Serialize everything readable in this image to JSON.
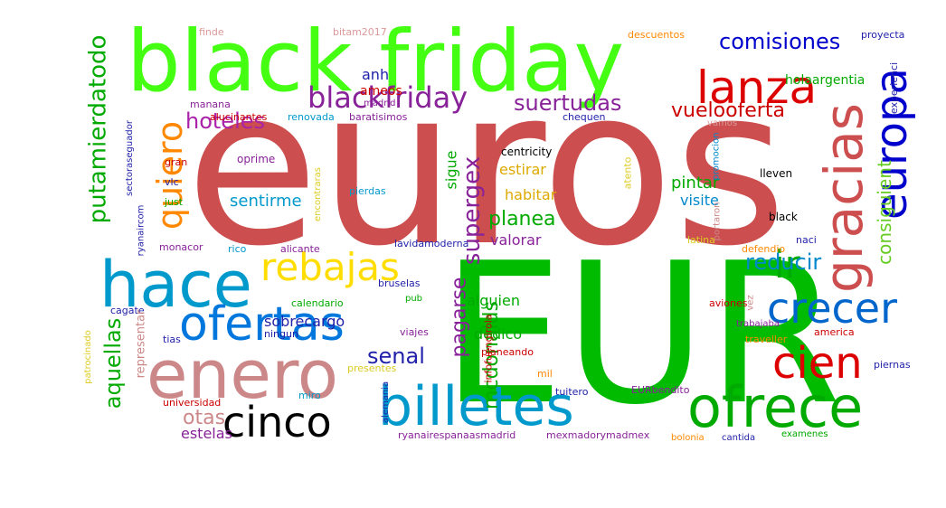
{
  "words": [
    {
      "text": "euros",
      "color": "#cc4e4e"
    },
    {
      "text": "EUR",
      "color": "#00bb00"
    },
    {
      "text": "black friday",
      "color": "#44ff11"
    },
    {
      "text": "enero",
      "color": "#cc8888"
    },
    {
      "text": "hace",
      "color": "#0099cc"
    },
    {
      "text": "ofertas",
      "color": "#0077dd"
    },
    {
      "text": "billetes",
      "color": "#0099cc"
    },
    {
      "text": "ofrece",
      "color": "#00aa00"
    },
    {
      "text": "cinco",
      "color": "#000000"
    },
    {
      "text": "gracias",
      "color": "#cc4e4e"
    },
    {
      "text": "lanza",
      "color": "#dd0000"
    },
    {
      "text": "europa",
      "color": "#0000cc"
    },
    {
      "text": "crecer",
      "color": "#0066cc"
    },
    {
      "text": "cien",
      "color": "#dd0000"
    },
    {
      "text": "ir",
      "color": "#00aa00"
    },
    {
      "text": "rebajas",
      "color": "#ffdd00"
    },
    {
      "text": "quiero",
      "color": "#ff8800"
    },
    {
      "text": "blackfriday",
      "color": "#882299"
    },
    {
      "text": "comisiones",
      "color": "#0000cc"
    },
    {
      "text": "putamierdatodo",
      "color": "#00aa00"
    },
    {
      "text": "hoteles",
      "color": "#aa22aa"
    },
    {
      "text": "suertudas",
      "color": "#882299"
    },
    {
      "text": "vuelooferta",
      "color": "#cc0000"
    },
    {
      "text": "supergex",
      "color": "#882299"
    },
    {
      "text": "planea",
      "color": "#00aa00"
    },
    {
      "text": "consiguient",
      "color": "#66cc22"
    },
    {
      "text": "reducir",
      "color": "#0088cc"
    },
    {
      "text": "aquellas",
      "color": "#00aa00"
    },
    {
      "text": "senal",
      "color": "#2222aa"
    },
    {
      "text": "pagarse",
      "color": "#882299"
    },
    {
      "text": "mcdonalds",
      "color": "#00aa00"
    },
    {
      "text": "otas",
      "color": "#cc8888"
    },
    {
      "text": "anh",
      "color": "#2222aa"
    },
    {
      "text": "ameos",
      "color": "#cc0000"
    },
    {
      "text": "holaargentia",
      "color": "#00aa00"
    },
    {
      "text": "sentirme",
      "color": "#0099cc"
    },
    {
      "text": "estirar",
      "color": "#ddaa00"
    },
    {
      "text": "habitar",
      "color": "#ddaa00"
    },
    {
      "text": "pintar",
      "color": "#00aa00"
    },
    {
      "text": "visite",
      "color": "#0088cc"
    },
    {
      "text": "sigue",
      "color": "#00aa00"
    },
    {
      "text": "valorar",
      "color": "#882299"
    },
    {
      "text": "sobrecargo",
      "color": "#2222aa"
    },
    {
      "text": "alguien",
      "color": "#00aa00"
    },
    {
      "text": "dedico",
      "color": "#00aa00"
    },
    {
      "text": "estelas",
      "color": "#882299"
    },
    {
      "text": "centricity",
      "color": "#000000"
    },
    {
      "text": "lleven",
      "color": "#000000"
    },
    {
      "text": "black",
      "color": "#000000"
    },
    {
      "text": "finde",
      "color": "#dd9999"
    },
    {
      "text": "bitam2017",
      "color": "#dd9999"
    },
    {
      "text": "descuentos",
      "color": "#ff8800"
    },
    {
      "text": "proyecta",
      "color": "#2222aa"
    },
    {
      "text": "experienci",
      "color": "#2222aa"
    },
    {
      "text": "madrid",
      "color": "#882299"
    },
    {
      "text": "manana",
      "color": "#882299"
    },
    {
      "text": "alucinantes",
      "color": "#cc0000"
    },
    {
      "text": "renovada",
      "color": "#0099cc"
    },
    {
      "text": "baratisimos",
      "color": "#882299"
    },
    {
      "text": "chequen",
      "color": "#2222aa"
    },
    {
      "text": "vamos",
      "color": "#dd9999"
    },
    {
      "text": "gran",
      "color": "#cc0000"
    },
    {
      "text": "oprime",
      "color": "#882299"
    },
    {
      "text": "promocion",
      "color": "#0088cc"
    },
    {
      "text": "encontraras",
      "color": "#ddcc22"
    },
    {
      "text": "atento",
      "color": "#ddcc22"
    },
    {
      "text": "vlc",
      "color": "#2222aa"
    },
    {
      "text": "just",
      "color": "#00aa00"
    },
    {
      "text": "pierdas",
      "color": "#0099cc"
    },
    {
      "text": "sectoraseguador",
      "color": "#2222aa"
    },
    {
      "text": "ryanaircom",
      "color": "#2222aa"
    },
    {
      "text": "portaron",
      "color": "#cc8888"
    },
    {
      "text": "monacor",
      "color": "#882299"
    },
    {
      "text": "rico",
      "color": "#0099cc"
    },
    {
      "text": "alicante",
      "color": "#882299"
    },
    {
      "text": "lavidamoderna",
      "color": "#2222aa"
    },
    {
      "text": "latina",
      "color": "#ddcc22"
    },
    {
      "text": "defendio",
      "color": "#ff8800"
    },
    {
      "text": "naci",
      "color": "#2222aa"
    },
    {
      "text": "cagate",
      "color": "#2222aa"
    },
    {
      "text": "calendario",
      "color": "#00aa00"
    },
    {
      "text": "pub",
      "color": "#00aa00"
    },
    {
      "text": "bruselas",
      "color": "#2222aa"
    },
    {
      "text": "ningun",
      "color": "#2222aa"
    },
    {
      "text": "aviones",
      "color": "#cc0000"
    },
    {
      "text": "vez",
      "color": "#cc8888"
    },
    {
      "text": "patrocinado",
      "color": "#ddcc22"
    },
    {
      "text": "representar",
      "color": "#cc8888"
    },
    {
      "text": "tias",
      "color": "#2222aa"
    },
    {
      "text": "viajes",
      "color": "#882299"
    },
    {
      "text": "planeando",
      "color": "#cc0000"
    },
    {
      "text": "trabajaba",
      "color": "#882299"
    },
    {
      "text": "traveller",
      "color": "#ff8800"
    },
    {
      "text": "america",
      "color": "#cc0000"
    },
    {
      "text": "presentes",
      "color": "#ddcc22"
    },
    {
      "text": "mil",
      "color": "#ff8800"
    },
    {
      "text": "piernas",
      "color": "#2222aa"
    },
    {
      "text": "infofuengirola",
      "color": "#cc0000"
    },
    {
      "text": "universidad",
      "color": "#cc0000"
    },
    {
      "text": "miro",
      "color": "#0099cc"
    },
    {
      "text": "tuitero",
      "color": "#2222aa"
    },
    {
      "text": "EURbendito",
      "color": "#882299"
    },
    {
      "text": "alemania",
      "color": "#2222aa"
    },
    {
      "text": "ryanairespanaasmadrid",
      "color": "#882299"
    },
    {
      "text": "mexmadorymadmex",
      "color": "#882299"
    },
    {
      "text": "bolonia",
      "color": "#ff8800"
    },
    {
      "text": "cantida",
      "color": "#2222aa"
    },
    {
      "text": "examenes",
      "color": "#00aa00"
    }
  ]
}
